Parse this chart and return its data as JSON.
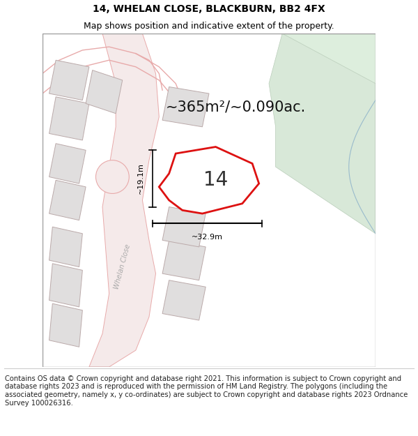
{
  "title_line1": "14, WHELAN CLOSE, BLACKBURN, BB2 4FX",
  "title_line2": "Map shows position and indicative extent of the property.",
  "area_text": "~365m²/~0.090ac.",
  "label_14": "14",
  "dim_vertical": "~19.1m",
  "dim_horizontal": "~32.9m",
  "footer_text": "Contains OS data © Crown copyright and database right 2021. This information is subject to Crown copyright and database rights 2023 and is reproduced with the permission of HM Land Registry. The polygons (including the associated geometry, namely x, y co-ordinates) are subject to Crown copyright and database rights 2023 Ordnance Survey 100026316.",
  "map_bg": "#f8f5f5",
  "map_bg_right": "#eef2ee",
  "plot_fill": "#ffffff",
  "plot_edge": "#dd1111",
  "road_fill": "#f5eaea",
  "road_edge": "#e8aaaa",
  "other_plot_fill": "#e0dede",
  "other_plot_edge": "#bbaaaa",
  "green_fill": "#ddeedd",
  "green_edge": "#aaccaa",
  "title_fontsize": 10,
  "subtitle_fontsize": 9,
  "area_fontsize": 15,
  "label_fontsize": 20,
  "dim_fontsize": 8,
  "footer_fontsize": 7.2
}
